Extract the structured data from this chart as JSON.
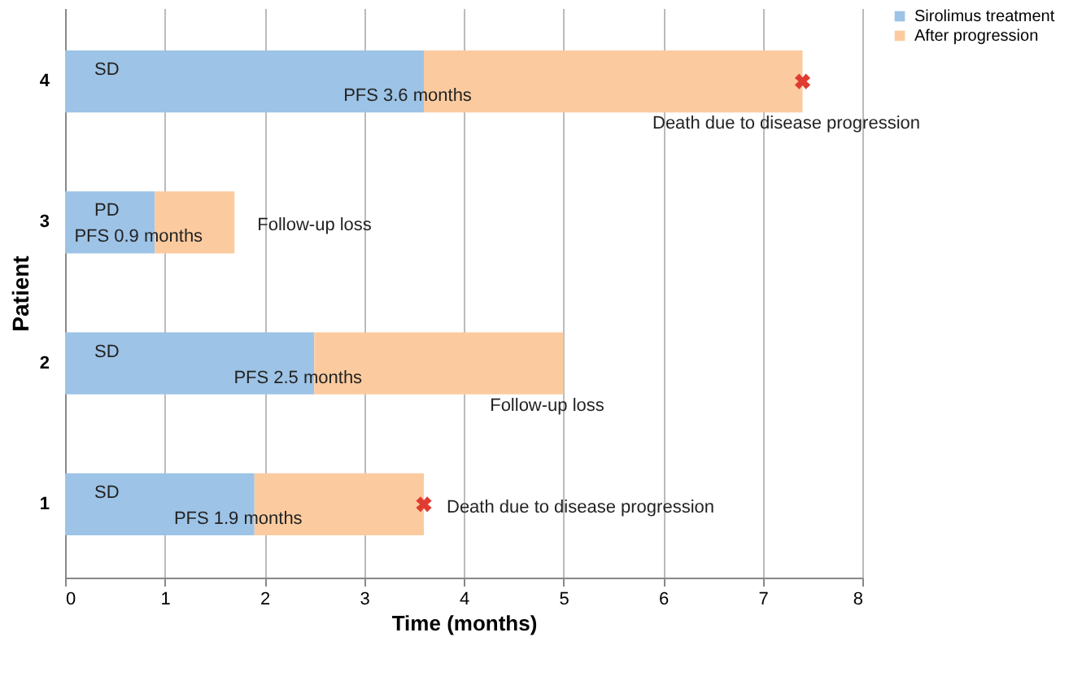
{
  "chart_data": {
    "type": "bar",
    "orientation": "horizontal",
    "stacked": true,
    "xlabel": "Time (months)",
    "ylabel": "Patient",
    "categories": [
      "4",
      "3",
      "2",
      "1"
    ],
    "series": [
      {
        "name": "Sirolimus treatment",
        "color": "#9dc3e6",
        "values": [
          3.6,
          0.9,
          2.5,
          1.9
        ]
      },
      {
        "name": "After progression",
        "color": "#fbcb9f",
        "values": [
          3.8,
          0.8,
          2.5,
          1.7
        ]
      },
      {
        "type": "scatter",
        "marker": "cross",
        "color": "#e03c31",
        "x": [
          "4",
          "1"
        ],
        "values": [
          7.4,
          3.6
        ]
      }
    ],
    "xlim": [
      0,
      8
    ],
    "xticks": [
      0,
      1,
      2,
      3,
      4,
      5,
      6,
      7,
      8
    ],
    "grid": "x",
    "legend": "right",
    "annotations": [
      {
        "text": "SD",
        "x": 0,
        "y": "4"
      },
      {
        "text": "PFS 3.6 months",
        "x": 3.6,
        "y": "4"
      },
      {
        "text": "Death due to disease progression",
        "x": 7.4,
        "y": "4"
      },
      {
        "text": "PD",
        "x": 0,
        "y": "3"
      },
      {
        "text": "PFS 0.9 months",
        "x": 0.9,
        "y": "3"
      },
      {
        "text": "Follow-up loss",
        "x": 1.7,
        "y": "3"
      },
      {
        "text": "SD",
        "x": 0,
        "y": "2"
      },
      {
        "text": "PFS 2.5 months",
        "x": 2.5,
        "y": "2"
      },
      {
        "text": "Follow-up loss",
        "x": 5.0,
        "y": "2"
      },
      {
        "text": "SD",
        "x": 0,
        "y": "1"
      },
      {
        "text": "PFS 1.9 months",
        "x": 1.9,
        "y": "1"
      },
      {
        "text": "Death due to disease progression",
        "x": 3.6,
        "y": "1"
      }
    ]
  }
}
